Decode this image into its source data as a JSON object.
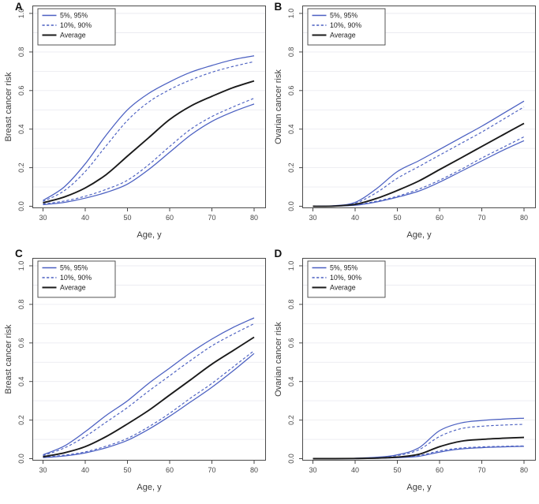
{
  "figure": {
    "background": "#ffffff",
    "colors": {
      "blue": "#4a5fc1",
      "black": "#1a1a1a",
      "grid": "#ebebf1",
      "axis": "#4a4a4a",
      "tick_text": "#474747",
      "title_text": "#3c3c3c"
    }
  },
  "chart_data": [
    {
      "panel": "A",
      "type": "line",
      "xlabel": "Age, y",
      "ylabel": "Breast cancer risk",
      "xlim": [
        30,
        80
      ],
      "ylim": [
        0.0,
        1.0
      ],
      "xticks": [
        30,
        40,
        50,
        60,
        70,
        80
      ],
      "ytick_labels": [
        "0.0",
        "0.2",
        "0.4",
        "0.6",
        "0.8",
        "1.0"
      ],
      "grid": {
        "horizontal_step": 0.1,
        "vertical": false
      },
      "legend_position": "top-left",
      "legend": [
        {
          "label": "5%, 95%",
          "line": "solid-blue"
        },
        {
          "label": "10%, 90%",
          "line": "dashed-blue"
        },
        {
          "label": "Average",
          "line": "solid-black"
        }
      ],
      "x": [
        30,
        35,
        40,
        45,
        50,
        55,
        60,
        65,
        70,
        75,
        80
      ],
      "series": [
        {
          "key": "p95",
          "name": "95th percentile",
          "line": "solid-blue",
          "values": [
            0.03,
            0.1,
            0.22,
            0.37,
            0.5,
            0.585,
            0.645,
            0.695,
            0.73,
            0.76,
            0.78
          ]
        },
        {
          "key": "p90",
          "name": "90th percentile",
          "line": "dashed-blue",
          "values": [
            0.025,
            0.08,
            0.18,
            0.315,
            0.445,
            0.54,
            0.605,
            0.655,
            0.695,
            0.725,
            0.75
          ]
        },
        {
          "key": "p10",
          "name": "10th percentile",
          "line": "dashed-blue",
          "values": [
            0.012,
            0.027,
            0.052,
            0.088,
            0.135,
            0.215,
            0.31,
            0.4,
            0.465,
            0.515,
            0.56
          ]
        },
        {
          "key": "p05",
          "name": "5th percentile",
          "line": "solid-blue",
          "values": [
            0.008,
            0.02,
            0.042,
            0.072,
            0.115,
            0.19,
            0.28,
            0.37,
            0.44,
            0.49,
            0.53
          ]
        },
        {
          "key": "avg",
          "name": "Average",
          "line": "solid-black",
          "values": [
            0.018,
            0.048,
            0.095,
            0.165,
            0.26,
            0.355,
            0.45,
            0.52,
            0.57,
            0.615,
            0.65
          ]
        }
      ]
    },
    {
      "panel": "B",
      "type": "line",
      "xlabel": "Age, y",
      "ylabel": "Ovarian cancer risk",
      "xlim": [
        30,
        80
      ],
      "ylim": [
        0.0,
        1.0
      ],
      "xticks": [
        30,
        40,
        50,
        60,
        70,
        80
      ],
      "ytick_labels": [
        "0.0",
        "0.2",
        "0.4",
        "0.6",
        "0.8",
        "1.0"
      ],
      "grid": {
        "horizontal_step": 0.1,
        "vertical": false
      },
      "legend_position": "top-left",
      "legend": [
        {
          "label": "5%, 95%",
          "line": "solid-blue"
        },
        {
          "label": "10%, 90%",
          "line": "dashed-blue"
        },
        {
          "label": "Average",
          "line": "solid-black"
        }
      ],
      "x": [
        30,
        35,
        40,
        45,
        50,
        55,
        60,
        65,
        70,
        75,
        80
      ],
      "series": [
        {
          "key": "p95",
          "name": "95th percentile",
          "line": "solid-blue",
          "values": [
            0.0,
            0.003,
            0.02,
            0.09,
            0.18,
            0.235,
            0.295,
            0.355,
            0.415,
            0.48,
            0.545
          ]
        },
        {
          "key": "p90",
          "name": "90th percentile",
          "line": "dashed-blue",
          "values": [
            0.0,
            0.002,
            0.015,
            0.07,
            0.145,
            0.205,
            0.265,
            0.325,
            0.385,
            0.45,
            0.515
          ]
        },
        {
          "key": "p10",
          "name": "10th percentile",
          "line": "dashed-blue",
          "values": [
            0.0,
            0.001,
            0.007,
            0.026,
            0.052,
            0.088,
            0.135,
            0.19,
            0.25,
            0.305,
            0.36
          ]
        },
        {
          "key": "p05",
          "name": "5th percentile",
          "line": "solid-blue",
          "values": [
            0.0,
            0.001,
            0.005,
            0.022,
            0.047,
            0.078,
            0.125,
            0.18,
            0.235,
            0.29,
            0.34
          ]
        },
        {
          "key": "avg",
          "name": "Average",
          "line": "solid-black",
          "values": [
            0.0,
            0.001,
            0.01,
            0.04,
            0.082,
            0.13,
            0.19,
            0.25,
            0.31,
            0.37,
            0.43
          ]
        }
      ]
    },
    {
      "panel": "C",
      "type": "line",
      "xlabel": "Age, y",
      "ylabel": "Breast cancer risk",
      "xlim": [
        30,
        80
      ],
      "ylim": [
        0.0,
        1.0
      ],
      "xticks": [
        30,
        40,
        50,
        60,
        70,
        80
      ],
      "ytick_labels": [
        "0.0",
        "0.2",
        "0.4",
        "0.6",
        "0.8",
        "1.0"
      ],
      "grid": {
        "horizontal_step": 0.1,
        "vertical": false
      },
      "legend_position": "top-left",
      "legend": [
        {
          "label": "5%, 95%",
          "line": "solid-blue"
        },
        {
          "label": "10%, 90%",
          "line": "dashed-blue"
        },
        {
          "label": "Average",
          "line": "solid-black"
        }
      ],
      "x": [
        30,
        35,
        40,
        45,
        50,
        55,
        60,
        65,
        70,
        75,
        80
      ],
      "series": [
        {
          "key": "p95",
          "name": "95th percentile",
          "line": "solid-blue",
          "values": [
            0.02,
            0.065,
            0.14,
            0.225,
            0.3,
            0.39,
            0.47,
            0.55,
            0.62,
            0.68,
            0.73
          ]
        },
        {
          "key": "p90",
          "name": "90th percentile",
          "line": "dashed-blue",
          "values": [
            0.015,
            0.055,
            0.115,
            0.19,
            0.265,
            0.35,
            0.43,
            0.51,
            0.585,
            0.645,
            0.7
          ]
        },
        {
          "key": "p10",
          "name": "10th percentile",
          "line": "dashed-blue",
          "values": [
            0.007,
            0.018,
            0.035,
            0.065,
            0.105,
            0.165,
            0.235,
            0.315,
            0.39,
            0.475,
            0.56
          ]
        },
        {
          "key": "p05",
          "name": "5th percentile",
          "line": "solid-blue",
          "values": [
            0.005,
            0.014,
            0.03,
            0.057,
            0.095,
            0.152,
            0.22,
            0.295,
            0.37,
            0.455,
            0.545
          ]
        },
        {
          "key": "avg",
          "name": "Average",
          "line": "solid-black",
          "values": [
            0.01,
            0.03,
            0.062,
            0.115,
            0.18,
            0.25,
            0.33,
            0.41,
            0.49,
            0.56,
            0.63
          ]
        }
      ]
    },
    {
      "panel": "D",
      "type": "line",
      "xlabel": "Age, y",
      "ylabel": "Ovarian cancer risk",
      "xlim": [
        30,
        80
      ],
      "ylim": [
        0.0,
        1.0
      ],
      "xticks": [
        30,
        40,
        50,
        60,
        70,
        80
      ],
      "ytick_labels": [
        "0.0",
        "0.2",
        "0.4",
        "0.6",
        "0.8",
        "1.0"
      ],
      "grid": {
        "horizontal_step": 0.1,
        "vertical": false
      },
      "legend_position": "top-left",
      "legend": [
        {
          "label": "5%, 95%",
          "line": "solid-blue"
        },
        {
          "label": "10%, 90%",
          "line": "dashed-blue"
        },
        {
          "label": "Average",
          "line": "solid-black"
        }
      ],
      "x": [
        30,
        35,
        40,
        45,
        50,
        55,
        60,
        65,
        70,
        75,
        80
      ],
      "series": [
        {
          "key": "p95",
          "name": "95th percentile",
          "line": "solid-blue",
          "values": [
            0.0,
            0.0,
            0.002,
            0.007,
            0.02,
            0.055,
            0.145,
            0.185,
            0.198,
            0.205,
            0.21
          ]
        },
        {
          "key": "p90",
          "name": "90th percentile",
          "line": "dashed-blue",
          "values": [
            0.0,
            0.0,
            0.002,
            0.006,
            0.016,
            0.045,
            0.115,
            0.155,
            0.168,
            0.174,
            0.178
          ]
        },
        {
          "key": "p10",
          "name": "10th percentile",
          "line": "dashed-blue",
          "values": [
            0.0,
            0.0,
            0.001,
            0.002,
            0.006,
            0.016,
            0.04,
            0.055,
            0.061,
            0.064,
            0.066
          ]
        },
        {
          "key": "p05",
          "name": "5th percentile",
          "line": "solid-blue",
          "values": [
            0.0,
            0.0,
            0.0,
            0.002,
            0.005,
            0.012,
            0.034,
            0.05,
            0.057,
            0.061,
            0.064
          ]
        },
        {
          "key": "avg",
          "name": "Average",
          "line": "solid-black",
          "values": [
            0.0,
            0.0,
            0.001,
            0.003,
            0.008,
            0.022,
            0.062,
            0.09,
            0.1,
            0.106,
            0.11
          ]
        }
      ]
    }
  ]
}
